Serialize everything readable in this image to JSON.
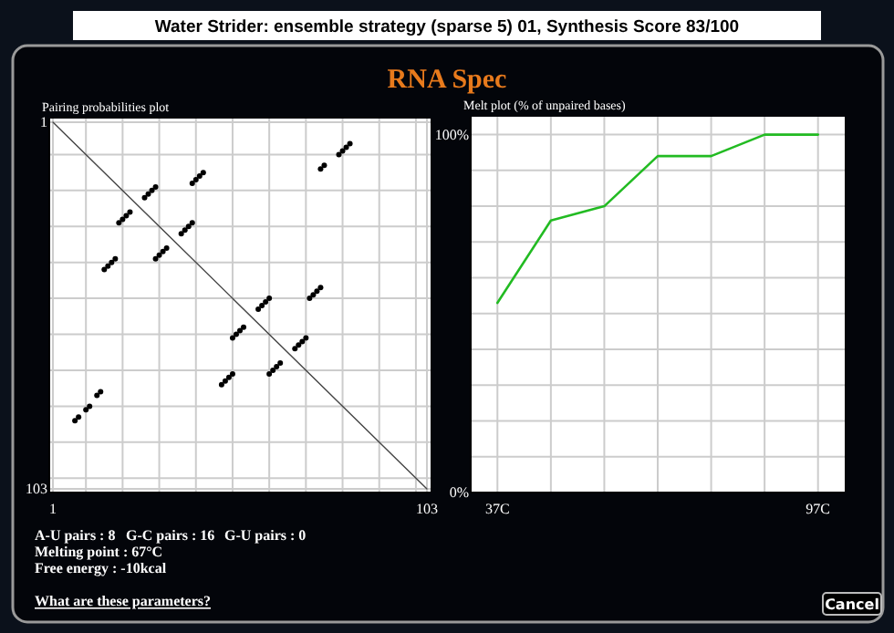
{
  "chart_data": [
    {
      "type": "scatter",
      "title": "Pairing probabilities plot",
      "xlim": [
        0,
        104
      ],
      "ylim": [
        104,
        0
      ],
      "xticks": [
        1,
        {
          "value": 10,
          "label": null
        },
        {
          "value": 20,
          "label": null
        },
        {
          "value": 30,
          "label": null
        },
        {
          "value": 40,
          "label": null
        },
        {
          "value": 50,
          "label": null
        },
        {
          "value": 60,
          "label": null
        },
        {
          "value": 70,
          "label": null
        },
        {
          "value": 80,
          "label": null
        },
        {
          "value": 90,
          "label": null
        },
        {
          "value": 100,
          "label": null
        },
        103
      ],
      "yticks": [
        1,
        {
          "value": 10,
          "label": null
        },
        {
          "value": 20,
          "label": null
        },
        {
          "value": 30,
          "label": null
        },
        {
          "value": 40,
          "label": null
        },
        {
          "value": 50,
          "label": null
        },
        {
          "value": 60,
          "label": null
        },
        {
          "value": 70,
          "label": null
        },
        {
          "value": 80,
          "label": null
        },
        {
          "value": 90,
          "label": null
        },
        {
          "value": 100,
          "label": null
        },
        103
      ],
      "grid": true,
      "series": [
        {
          "type": "line",
          "color": "#444444",
          "x": [
            1,
            103
          ],
          "values": [
            1,
            103
          ]
        },
        {
          "type": "scatter",
          "color": "#000000",
          "marker": "circle",
          "x": [
            74,
            75,
            79,
            80,
            81,
            82,
            39,
            40,
            41,
            42,
            26,
            27,
            28,
            29,
            36,
            37,
            38,
            39,
            19,
            20,
            21,
            22,
            29,
            30,
            31,
            32,
            15,
            16,
            17,
            18,
            57,
            58,
            59,
            60,
            71,
            72,
            73,
            74,
            50,
            51,
            52,
            53,
            67,
            68,
            69,
            70,
            60,
            61,
            62,
            63,
            47,
            48,
            49,
            50,
            7,
            8,
            10,
            11,
            13,
            14
          ],
          "values": [
            14,
            13,
            10,
            9,
            8,
            7,
            18,
            17,
            16,
            15,
            22,
            21,
            20,
            19,
            32,
            31,
            30,
            29,
            29,
            28,
            27,
            26,
            39,
            38,
            37,
            36,
            42,
            41,
            40,
            39,
            53,
            52,
            51,
            50,
            50,
            49,
            48,
            47,
            61,
            60,
            59,
            58,
            64,
            63,
            62,
            61,
            71,
            70,
            69,
            68,
            74,
            73,
            72,
            71,
            84,
            83,
            81,
            80,
            77,
            76
          ]
        }
      ],
      "annotations": [
        "Water Strider: ensemble strategy (sparse 5) 01,  Synthesis Score 83/100",
        "RNA Spec",
        "A-U pairs : 8",
        "G-C pairs : 16",
        "G-U pairs : 0",
        "Melting point : 67°C",
        "Free energy : -10kcal",
        "What are these parameters?",
        "Cancel"
      ]
    },
    {
      "type": "line",
      "title": "Melt plot (% of unpaired bases)",
      "xlim": [
        32,
        102
      ],
      "ylim": [
        0,
        105
      ],
      "xticks": [
        {
          "value": 37,
          "label": "37C"
        },
        {
          "value": 47,
          "label": null
        },
        {
          "value": 57,
          "label": null
        },
        {
          "value": 67,
          "label": null
        },
        {
          "value": 77,
          "label": null
        },
        {
          "value": 87,
          "label": null
        },
        {
          "value": 97,
          "label": "97C"
        }
      ],
      "yticks": [
        {
          "value": 0,
          "label": "0%"
        },
        {
          "value": 10,
          "label": null
        },
        {
          "value": 20,
          "label": null
        },
        {
          "value": 30,
          "label": null
        },
        {
          "value": 40,
          "label": null
        },
        {
          "value": 50,
          "label": null
        },
        {
          "value": 60,
          "label": null
        },
        {
          "value": 70,
          "label": null
        },
        {
          "value": 80,
          "label": null
        },
        {
          "value": 90,
          "label": null
        },
        {
          "value": 100,
          "label": "100%"
        }
      ],
      "grid": true,
      "marker": "none",
      "x": [
        37,
        47,
        57,
        67,
        77,
        87,
        97
      ],
      "series": [
        {
          "color": "#22bb22",
          "values": [
            53,
            76,
            80,
            94,
            94,
            100,
            100
          ]
        }
      ]
    }
  ]
}
